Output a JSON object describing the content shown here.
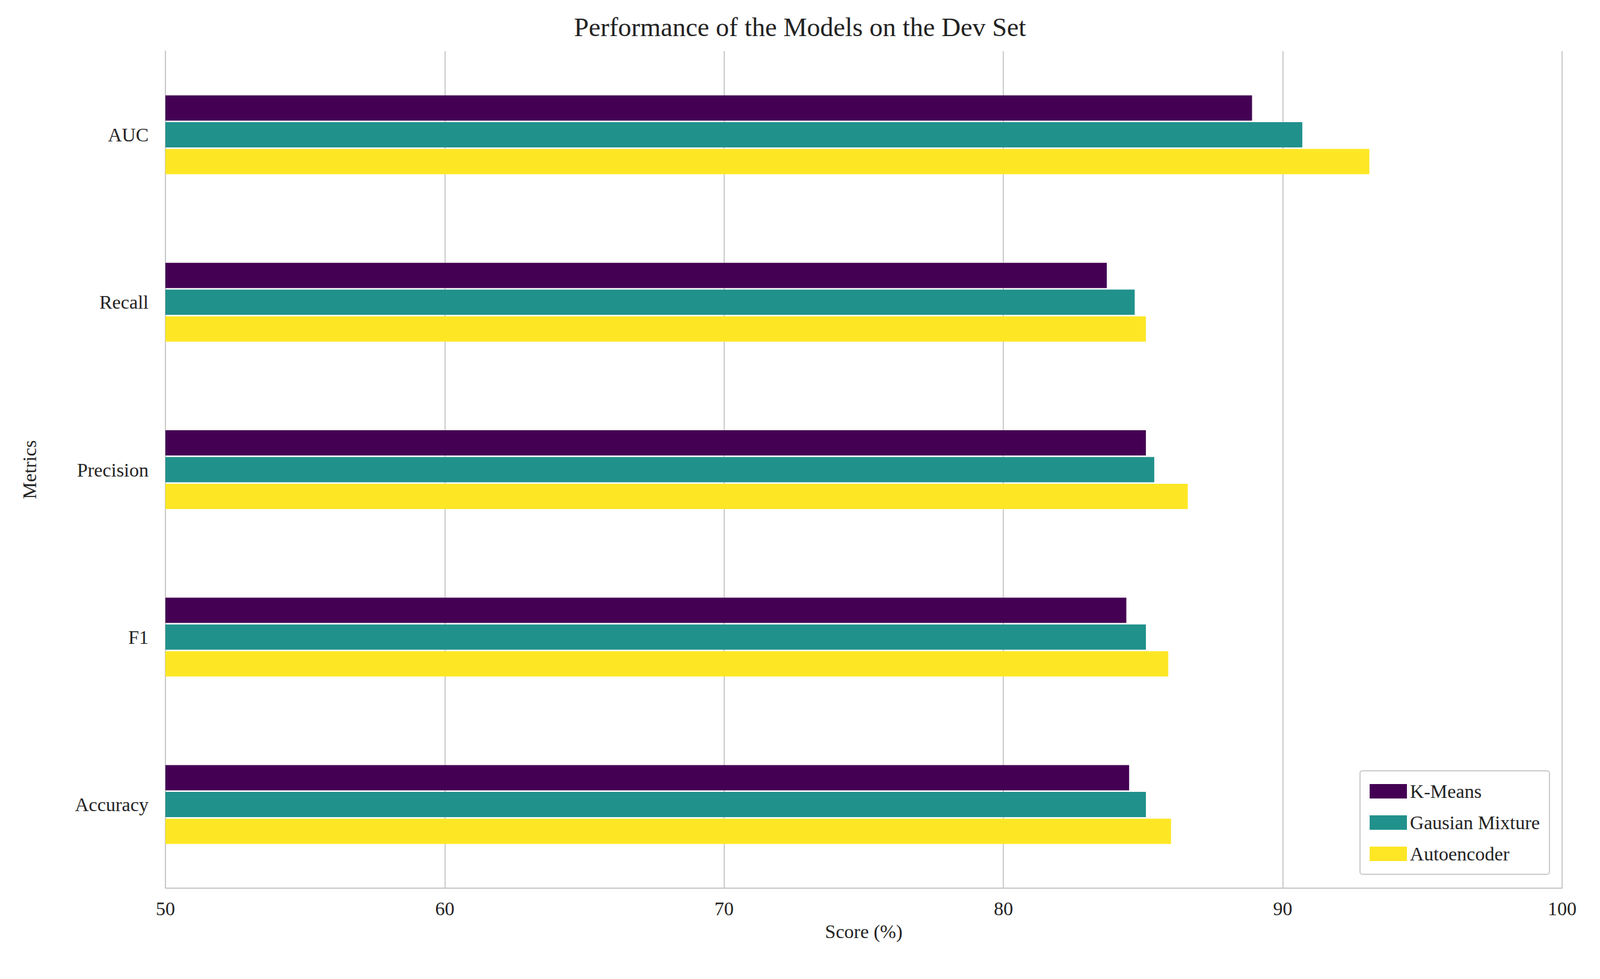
{
  "chart_data": {
    "type": "bar",
    "title": "Performance of the Models on the Dev Set",
    "orientation": "horizontal",
    "x_label": "Score (%)",
    "y_label": "Metrics",
    "categories": [
      "Accuracy",
      "F1",
      "Precision",
      "Recall",
      "AUC"
    ],
    "series": [
      {
        "name": "K-Means",
        "color": "#440154",
        "values": [
          84.5,
          84.4,
          85.1,
          83.7,
          88.9
        ]
      },
      {
        "name": "Gausian Mixture",
        "color": "#21918c",
        "values": [
          85.1,
          85.1,
          85.4,
          84.7,
          90.7
        ]
      },
      {
        "name": "Autoencoder",
        "color": "#fde725",
        "values": [
          86.0,
          85.9,
          86.6,
          85.1,
          93.1
        ]
      }
    ],
    "xlim": [
      50,
      100
    ],
    "xticks": [
      50,
      60,
      70,
      80,
      90,
      100
    ],
    "grid": true,
    "legend": "lower right"
  }
}
